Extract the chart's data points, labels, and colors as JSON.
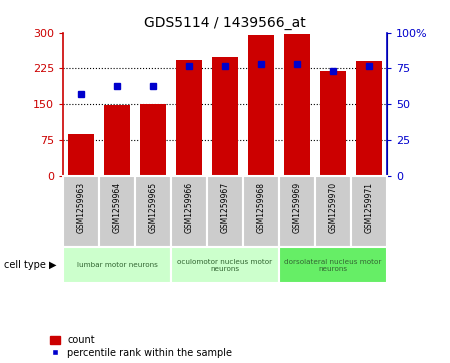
{
  "title": "GDS5114 / 1439566_at",
  "samples": [
    "GSM1259963",
    "GSM1259964",
    "GSM1259965",
    "GSM1259966",
    "GSM1259967",
    "GSM1259968",
    "GSM1259969",
    "GSM1259970",
    "GSM1259971"
  ],
  "counts": [
    88,
    148,
    150,
    242,
    248,
    295,
    297,
    220,
    240
  ],
  "percentile_ranks": [
    57,
    63,
    63,
    77,
    77,
    78,
    78,
    73,
    77
  ],
  "ylim_left": [
    0,
    300
  ],
  "ylim_right": [
    0,
    100
  ],
  "yticks_left": [
    0,
    75,
    150,
    225,
    300
  ],
  "yticks_right": [
    0,
    25,
    50,
    75,
    100
  ],
  "ytick_labels_left": [
    "0",
    "75",
    "150",
    "225",
    "300"
  ],
  "ytick_labels_right": [
    "0",
    "25",
    "50",
    "75",
    "100%"
  ],
  "bar_color": "#cc0000",
  "dot_color": "#0000cc",
  "grid_color": "#000000",
  "cell_type_groups": [
    {
      "label": "lumbar motor neurons",
      "start": 0,
      "end": 2,
      "color": "#ccffcc"
    },
    {
      "label": "oculomotor nucleus motor\nneurons",
      "start": 3,
      "end": 5,
      "color": "#ccffcc"
    },
    {
      "label": "dorsolateral nucleus motor\nneurons",
      "start": 6,
      "end": 8,
      "color": "#66ee66"
    }
  ],
  "legend_count_label": "count",
  "legend_percentile_label": "percentile rank within the sample",
  "cell_type_label": "cell type",
  "bg_color": "#ffffff",
  "sample_box_color": "#cccccc",
  "sample_box_border": "#aaaaaa"
}
